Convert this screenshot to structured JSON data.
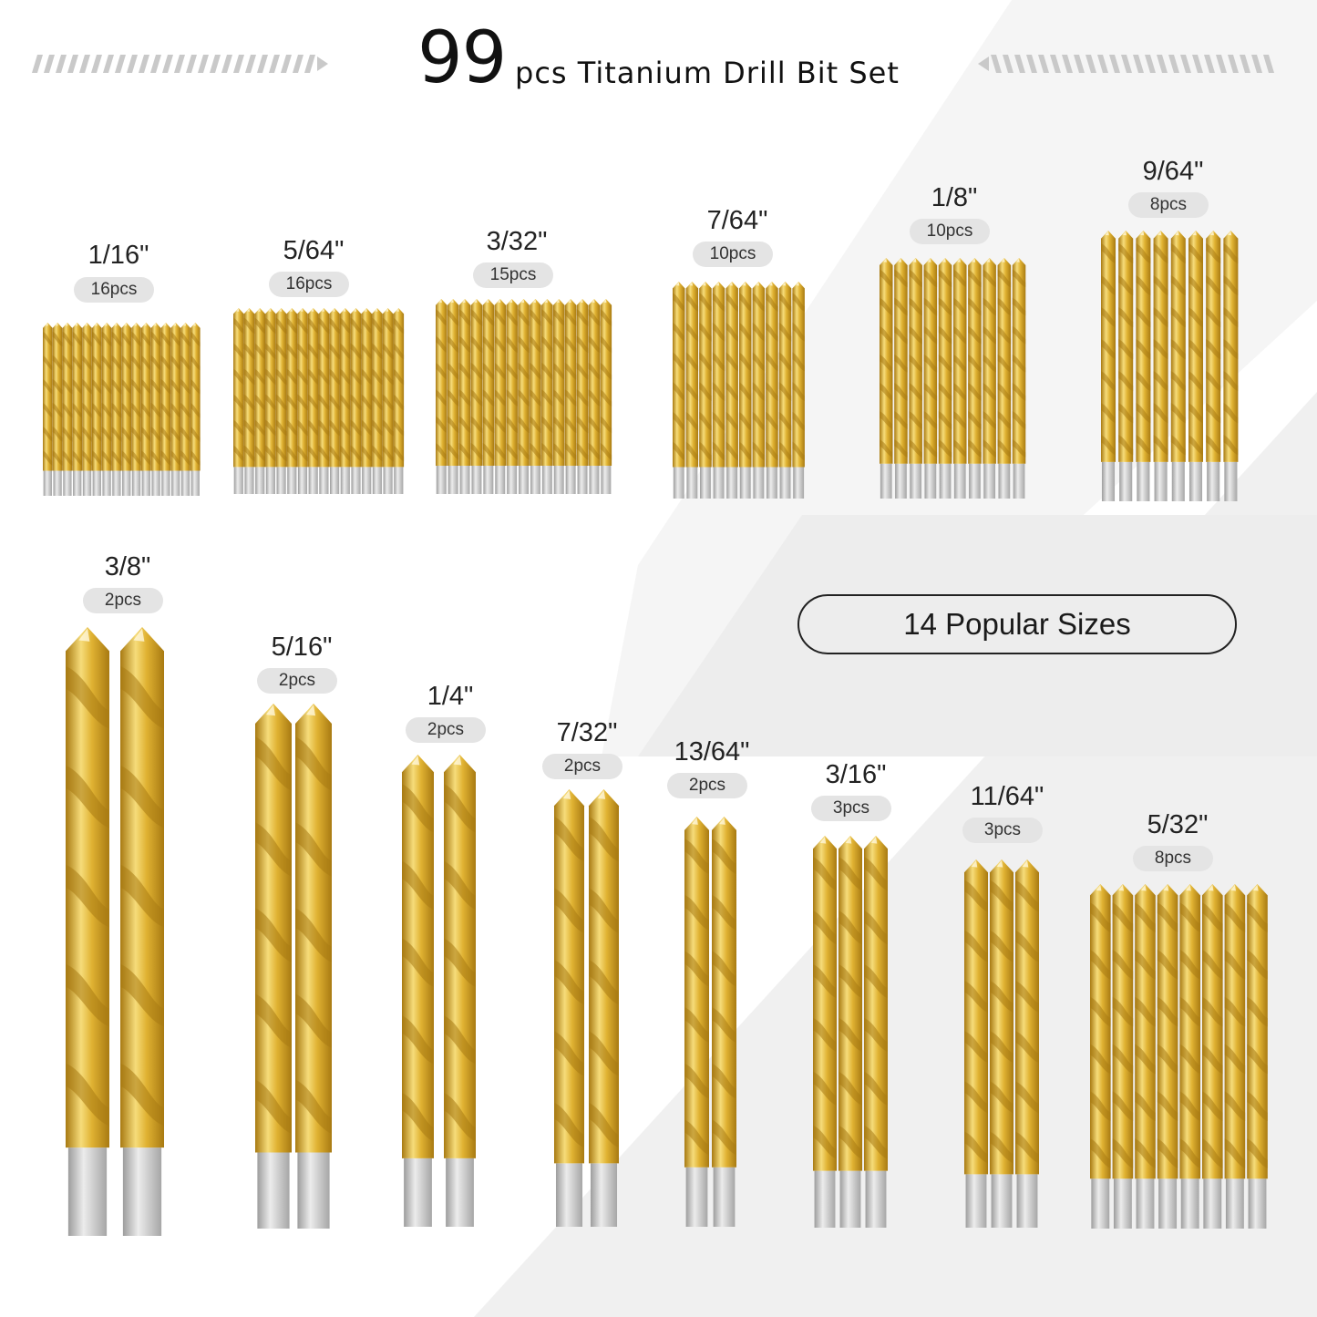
{
  "title": {
    "number": "99",
    "rest": "pcs Titanium Drill Bit Set"
  },
  "badge": "14 Popular Sizes",
  "colors": {
    "gold_light": "#f6dc7a",
    "gold_mid": "#e0b232",
    "gold_dark": "#a87a12",
    "shank": "#c9c9c9",
    "pill": "#e4e4e4"
  },
  "groups": [
    {
      "size": "1/16\"",
      "count": "16pcs",
      "bits": 16
    },
    {
      "size": "5/64\"",
      "count": "16pcs",
      "bits": 16
    },
    {
      "size": "3/32\"",
      "count": "15pcs",
      "bits": 15
    },
    {
      "size": "7/64\"",
      "count": "10pcs",
      "bits": 10
    },
    {
      "size": "1/8\"",
      "count": "10pcs",
      "bits": 10
    },
    {
      "size": "9/64\"",
      "count": "8pcs",
      "bits": 8
    },
    {
      "size": "3/8\"",
      "count": "2pcs",
      "bits": 2
    },
    {
      "size": "5/16\"",
      "count": "2pcs",
      "bits": 2
    },
    {
      "size": "1/4\"",
      "count": "2pcs",
      "bits": 2
    },
    {
      "size": "7/32\"",
      "count": "2pcs",
      "bits": 2
    },
    {
      "size": "13/64\"",
      "count": "2pcs",
      "bits": 2
    },
    {
      "size": "3/16\"",
      "count": "3pcs",
      "bits": 3
    },
    {
      "size": "11/64\"",
      "count": "3pcs",
      "bits": 3
    },
    {
      "size": "5/32\"",
      "count": "8pcs",
      "bits": 8
    }
  ]
}
